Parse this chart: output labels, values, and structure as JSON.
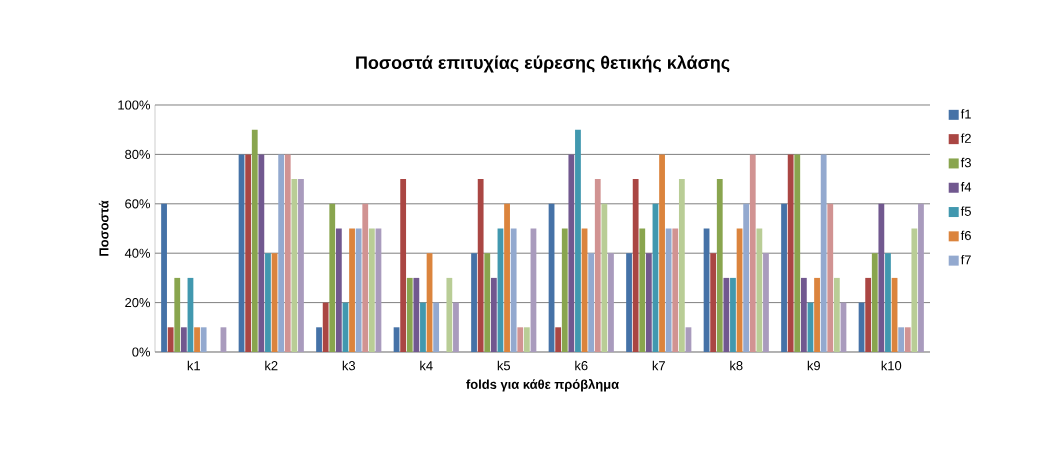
{
  "chart_data": {
    "type": "bar",
    "title": "Ποσοστά επιτυχίας εύρεσης θετικής κλάσης",
    "xlabel": "folds για κάθε πρόβλημα",
    "ylabel": "Ποσοστά",
    "categories": [
      "k1",
      "k2",
      "k3",
      "k4",
      "k5",
      "k6",
      "k7",
      "k8",
      "k9",
      "k10"
    ],
    "series": [
      {
        "name": "f1",
        "color": "#4572a7",
        "values": [
          60,
          80,
          10,
          10,
          40,
          60,
          40,
          50,
          60,
          20
        ]
      },
      {
        "name": "f2",
        "color": "#aa4643",
        "values": [
          10,
          80,
          20,
          70,
          70,
          10,
          70,
          40,
          80,
          30
        ]
      },
      {
        "name": "f3",
        "color": "#89a54e",
        "values": [
          30,
          90,
          60,
          30,
          40,
          50,
          50,
          70,
          80,
          40
        ]
      },
      {
        "name": "f4",
        "color": "#71588f",
        "values": [
          10,
          80,
          50,
          30,
          30,
          80,
          40,
          30,
          30,
          60
        ]
      },
      {
        "name": "f5",
        "color": "#4198af",
        "values": [
          30,
          40,
          20,
          20,
          50,
          90,
          60,
          30,
          20,
          40
        ]
      },
      {
        "name": "f6",
        "color": "#db843d",
        "values": [
          10,
          40,
          50,
          40,
          60,
          50,
          80,
          50,
          30,
          30
        ]
      },
      {
        "name": "f7",
        "color": "#93a9cf",
        "values": [
          10,
          80,
          50,
          20,
          50,
          40,
          50,
          60,
          80,
          10
        ]
      },
      {
        "color": "#d19392",
        "values": [
          0,
          80,
          60,
          0,
          10,
          70,
          50,
          80,
          60,
          10
        ]
      },
      {
        "color": "#b9cd96",
        "values": [
          0,
          70,
          50,
          30,
          10,
          60,
          70,
          50,
          30,
          50
        ]
      },
      {
        "color": "#a99bbd",
        "values": [
          10,
          70,
          50,
          20,
          50,
          40,
          10,
          40,
          20,
          60
        ]
      }
    ],
    "ylim": [
      0,
      100
    ],
    "yticks": [
      {
        "value": 0,
        "label": "0%"
      },
      {
        "value": 20,
        "label": "20%"
      },
      {
        "value": 40,
        "label": "40%"
      },
      {
        "value": 60,
        "label": "60%"
      },
      {
        "value": 80,
        "label": "80%"
      },
      {
        "value": 100,
        "label": "100%"
      }
    ],
    "grid": "y",
    "legend": "right"
  }
}
